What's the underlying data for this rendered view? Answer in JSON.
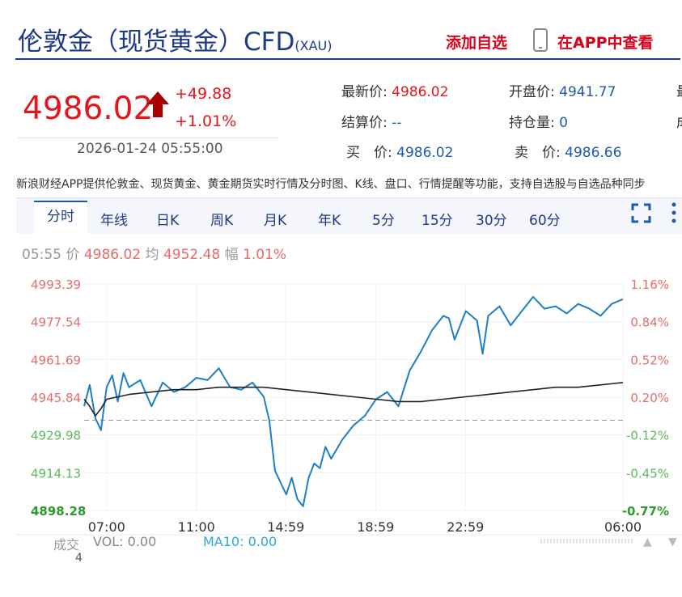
{
  "header": {
    "title": "伦敦金（现货黄金）CFD",
    "title_sub": "(XAU)",
    "add_favorite": "添加自选",
    "app_link": "在APP中查看"
  },
  "quote": {
    "price": "4986.02",
    "change": "+49.88",
    "change_pct": "+1.01%",
    "datetime": "2026-01-24 05:55:00",
    "fields": [
      {
        "label": "最新价:",
        "value": "4986.02"
      },
      {
        "label": "开盘价:",
        "value": "4941.77"
      },
      {
        "label": "结算价:",
        "value": "--"
      },
      {
        "label": "持仓量:",
        "value": "0"
      },
      {
        "label": "买　价:",
        "value": "4986.02"
      },
      {
        "label": "卖　价:",
        "value": "4986.66"
      }
    ],
    "cut_label_1": "最",
    "cut_label_2": "成"
  },
  "description": "新浪财经APP提供伦敦金、现货黄金、黄金期货实时行情及分时图、K线、盘口、行情提醒等功能，支持自选股与自选品种同步",
  "tabs": [
    "分时",
    "年线",
    "日K",
    "周K",
    "月K",
    "年K",
    "5分",
    "15分",
    "30分",
    "60分"
  ],
  "info_bar": {
    "time": "05:55",
    "price_label": "价",
    "price": "4986.02",
    "avg_label": "均",
    "avg": "4952.48",
    "pct_label": "幅",
    "pct": "1.01%"
  },
  "volume": {
    "label": "成交",
    "vol": "VOL: 0.00",
    "ma10": "MA10: 0.00",
    "scale": "4"
  },
  "chart_data": {
    "type": "line",
    "ylim": [
      4898.28,
      4993.39
    ],
    "reference_price": 4936.14,
    "y_tick_labels": [
      "4993.39",
      "4977.54",
      "4961.69",
      "4945.84",
      "4929.98",
      "4914.13",
      "4898.28"
    ],
    "right_tick_labels": [
      "1.16%",
      "0.84%",
      "0.52%",
      "0.20%",
      "-0.12%",
      "-0.45%",
      "-0.77%"
    ],
    "x_tick_labels": [
      "07:00",
      "11:00",
      "14:59",
      "18:59",
      "22:59",
      "06:00"
    ],
    "x_axis_note": "hours elapsed since 06:00 session open; session runs 06:00 to 06:00 next day",
    "series": [
      {
        "name": "价",
        "color": "#1e7fc7",
        "x": [
          0,
          0.25,
          0.5,
          0.75,
          1,
          1.25,
          1.5,
          1.75,
          2,
          2.5,
          3,
          3.5,
          4,
          4.5,
          5,
          5.5,
          6,
          6.5,
          7,
          7.5,
          8,
          8.25,
          8.5,
          8.75,
          9,
          9.25,
          9.5,
          9.75,
          10,
          10.25,
          10.5,
          10.75,
          11,
          11.5,
          12,
          12.5,
          13,
          13.5,
          14,
          14.5,
          15,
          15.5,
          16,
          16.25,
          16.5,
          17,
          17.5,
          17.75,
          18,
          18.5,
          19,
          19.5,
          20,
          20.5,
          21,
          21.5,
          22,
          22.5,
          23,
          23.5,
          24
        ],
        "values": [
          4942,
          4951,
          4937,
          4932,
          4950,
          4955,
          4944,
          4956,
          4950,
          4953,
          4942,
          4952,
          4948,
          4950,
          4954,
          4953,
          4958,
          4950,
          4949,
          4952,
          4946,
          4936,
          4915,
          4910,
          4905,
          4912,
          4903,
          4900,
          4912,
          4918,
          4916,
          4925,
          4920,
          4928,
          4934,
          4938,
          4945,
          4948,
          4942,
          4957,
          4965,
          4974,
          4980,
          4979,
          4970,
          4982,
          4978,
          4964,
          4980,
          4984,
          4976,
          4982,
          4988,
          4983,
          4984,
          4981,
          4985,
          4983,
          4980,
          4985,
          4987
        ]
      },
      {
        "name": "均",
        "color": "#222222",
        "x": [
          0,
          0.25,
          0.5,
          0.75,
          1,
          2,
          3,
          4,
          5,
          6,
          7,
          8,
          9,
          10,
          11,
          12,
          13,
          14,
          15,
          16,
          17,
          18,
          19,
          20,
          21,
          22,
          23,
          24
        ],
        "values": [
          4945,
          4942,
          4938,
          4941,
          4945,
          4947,
          4948,
          4949,
          4949,
          4950,
          4950,
          4950,
          4949,
          4948,
          4947,
          4946,
          4945,
          4944,
          4944,
          4945,
          4946,
          4947,
          4948,
          4949,
          4950,
          4950,
          4951,
          4952
        ]
      }
    ]
  }
}
